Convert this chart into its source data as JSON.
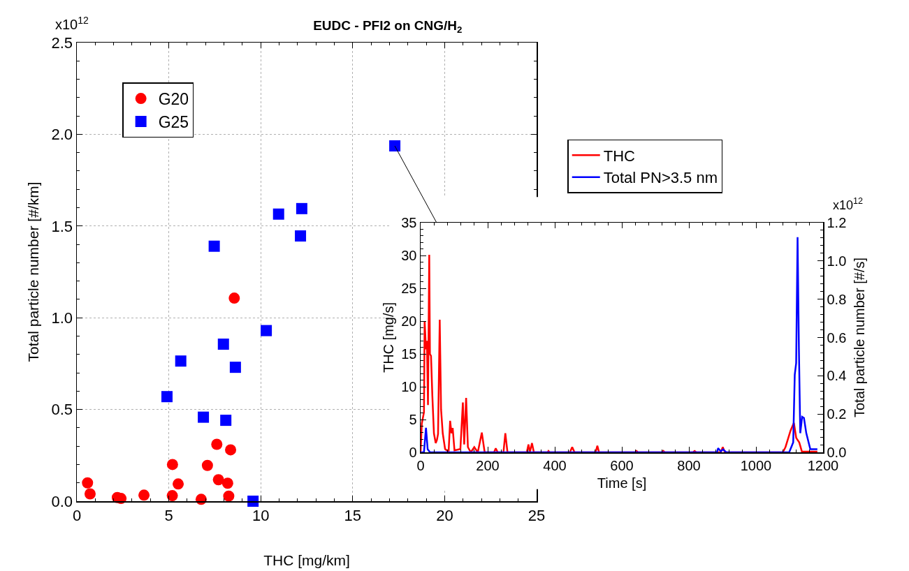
{
  "chart_data": [
    {
      "type": "scatter",
      "title": "EUDC - PFI2 on CNG/H$_{2}$",
      "xlabel": "THC [mg/km]",
      "ylabel": "Total particle number [#/km]",
      "annotations": [
        "x10$^{12}$"
      ],
      "xlim": [
        0,
        25
      ],
      "xticks": [
        0,
        5,
        10,
        15,
        20,
        25
      ],
      "ylim": [
        0,
        2.5
      ],
      "yticks": [
        {
          "value": 0,
          "label": "0.0"
        },
        0.5,
        {
          "value": 1,
          "label": "1.0"
        },
        1.5,
        {
          "value": 2,
          "label": "2.0"
        },
        2.5
      ],
      "grid": true,
      "legend": "top left",
      "series": [
        {
          "name": "G20",
          "color": "#ff0000",
          "marker": "circle",
          "x": [
            0.58,
            0.72,
            2.2,
            2.4,
            3.65,
            5.19,
            5.2,
            5.51,
            6.76,
            7.1,
            7.61,
            7.7,
            8.2,
            8.36,
            8.26,
            8.56
          ],
          "values": [
            0.1,
            0.04,
            0.02,
            0.015,
            0.033,
            0.03,
            0.2,
            0.094,
            0.01,
            0.195,
            0.31,
            0.117,
            0.098,
            0.28,
            0.028,
            1.107
          ]
        },
        {
          "name": "G25",
          "color": "#0000ff",
          "marker": "square",
          "x": [
            10.97,
            7.47,
            10.3,
            7.97,
            5.65,
            8.62,
            4.9,
            6.88,
            8.1,
            9.58,
            12.23,
            12.16,
            17.29
          ],
          "values": [
            1.565,
            1.39,
            0.93,
            0.856,
            0.764,
            0.73,
            0.57,
            0.458,
            0.441,
            0.0,
            1.595,
            1.446,
            1.937
          ]
        }
      ]
    },
    {
      "type": "line",
      "xlabel": "Time [s]",
      "ylabel": "THC [mg/s]",
      "y2label": "Total particle number [#/s]",
      "annotations": [
        "x10$^{12}$"
      ],
      "xlim": [
        0,
        1200
      ],
      "xticks": [
        0,
        200,
        400,
        600,
        800,
        1000,
        1200
      ],
      "ylim": [
        0,
        35
      ],
      "yticks": [
        0,
        5,
        10,
        15,
        20,
        25,
        30,
        35
      ],
      "y2lim": [
        0,
        1.2
      ],
      "y2ticks": [
        {
          "value": 0,
          "label": "0.0"
        },
        0.2,
        0.4,
        0.6,
        0.8,
        {
          "value": 1,
          "label": "1.0"
        },
        1.2
      ],
      "legend": "top",
      "series": [
        {
          "name": "THC",
          "color": "#ff0000",
          "x": [
            0,
            3.5,
            10,
            12,
            16,
            18.8,
            22,
            25.7,
            27.8,
            31,
            35,
            39.7,
            45,
            48.7,
            52,
            57,
            61,
            66,
            73,
            83.5,
            88,
            92,
            95.6,
            101,
            118.6,
            126,
            130,
            135.7,
            141,
            149.6,
            160,
            170.5,
            182.5,
            191,
            219,
            224,
            230,
            247,
            252.6,
            259,
            316.6,
            321.6,
            325.8,
            332,
            337.7,
            379,
            381.3,
            385,
            445,
            452,
            459,
            521.6,
            527,
            532,
            640,
            643.6,
            648,
            720,
            723.6,
            728,
            812,
            817,
            822,
            895,
            901,
            907,
            1080,
            1088,
            1103,
            1113,
            1120,
            1129,
            1137,
            1183
          ],
          "values": [
            0,
            4.4,
            6.1,
            20,
            15.7,
            17,
            7.2,
            30.1,
            15,
            14.7,
            8.6,
            2.9,
            1.4,
            1.9,
            2.8,
            20.2,
            6.5,
            2.9,
            0.5,
            0.1,
            4.8,
            2.9,
            3.7,
            0.3,
            0.5,
            7.6,
            1.2,
            8.3,
            0.8,
            0,
            0.8,
            0,
            3.0,
            0,
            0,
            0.6,
            0,
            0,
            2.9,
            0,
            0,
            1.2,
            0,
            1.4,
            0,
            0,
            0.2,
            0,
            0,
            0.8,
            0,
            0,
            1.0,
            0,
            0,
            0.2,
            0,
            0,
            0.2,
            0,
            0,
            0.2,
            0,
            0,
            0.8,
            0,
            0,
            0.8,
            3.3,
            4.5,
            2.2,
            1.5,
            0.1,
            0.1
          ]
        },
        {
          "name": "Total PN>3.5 nm",
          "color": "#0000ff",
          "axis": "y2",
          "x": [
            0,
            10,
            16,
            21,
            28,
            884,
            887,
            895,
            902,
            911,
            1099,
            1111,
            1115.6,
            1119.8,
            1124,
            1128,
            1132,
            1137.6,
            1143,
            1150,
            1162,
            1183
          ],
          "values": [
            0,
            0,
            0.128,
            0.016,
            0,
            0,
            0.022,
            0.005,
            0.016,
            0,
            0,
            0.052,
            0.405,
            0.466,
            1.124,
            0.54,
            0.1,
            0.186,
            0.18,
            0.1,
            0.016,
            0.016
          ]
        }
      ]
    }
  ]
}
